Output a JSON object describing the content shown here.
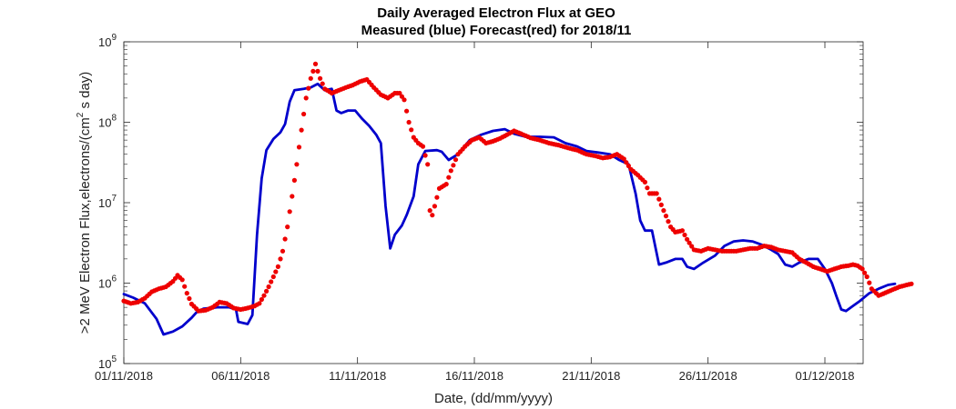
{
  "chart_data": {
    "type": "line",
    "title": "Daily Averaged Electron Flux at GEO",
    "subtitle": "Measured (blue) Forecast(red) for 2018/11",
    "xlabel": "Date, (dd/mm/yyyy)",
    "ylabel": ">2 MeV Electron Flux,electrons/(cm² s day)",
    "ylabel_parts": [
      ">2 MeV Electron Flux,electrons/(cm",
      "2",
      " s day)"
    ],
    "yscale": "log",
    "ylim": [
      100000,
      1000000000
    ],
    "xlim": [
      0,
      31
    ],
    "x_unit": "days since 01/11/2018",
    "x_tick_values": [
      0,
      5,
      10,
      15,
      20,
      25,
      30
    ],
    "x_tick_labels": [
      "01/11/2018",
      "06/11/2018",
      "11/11/2018",
      "16/11/2018",
      "21/11/2018",
      "26/11/2018",
      "01/12/2018"
    ],
    "y_tick_values": [
      100000,
      1000000,
      10000000,
      100000000,
      1000000000
    ],
    "y_tick_labels": [
      {
        "base": "10",
        "exp": "5"
      },
      {
        "base": "10",
        "exp": "6"
      },
      {
        "base": "10",
        "exp": "7"
      },
      {
        "base": "10",
        "exp": "8"
      },
      {
        "base": "10",
        "exp": "9"
      }
    ],
    "grid": false,
    "series": [
      {
        "name": "Measured",
        "color": "#0000cc",
        "style": "line",
        "points": [
          [
            0.0,
            730000
          ],
          [
            0.4,
            660000
          ],
          [
            0.9,
            560000
          ],
          [
            1.4,
            360000
          ],
          [
            1.7,
            230000
          ],
          [
            2.1,
            250000
          ],
          [
            2.5,
            290000
          ],
          [
            2.9,
            370000
          ],
          [
            3.1,
            430000
          ],
          [
            3.4,
            480000
          ],
          [
            4.0,
            500000
          ],
          [
            4.5,
            500000
          ],
          [
            4.8,
            470000
          ],
          [
            4.9,
            330000
          ],
          [
            5.3,
            310000
          ],
          [
            5.5,
            400000
          ],
          [
            5.7,
            4000000
          ],
          [
            5.9,
            20000000
          ],
          [
            6.1,
            45000000
          ],
          [
            6.4,
            62000000
          ],
          [
            6.7,
            75000000
          ],
          [
            6.9,
            95000000
          ],
          [
            7.1,
            180000000
          ],
          [
            7.3,
            250000000
          ],
          [
            7.7,
            260000000
          ],
          [
            8.0,
            270000000
          ],
          [
            8.3,
            300000000
          ],
          [
            8.6,
            250000000
          ],
          [
            8.9,
            260000000
          ],
          [
            9.1,
            140000000
          ],
          [
            9.3,
            130000000
          ],
          [
            9.6,
            140000000
          ],
          [
            9.9,
            140000000
          ],
          [
            10.2,
            110000000
          ],
          [
            10.5,
            90000000
          ],
          [
            10.8,
            70000000
          ],
          [
            11.0,
            55000000
          ],
          [
            11.2,
            9000000
          ],
          [
            11.4,
            2700000
          ],
          [
            11.6,
            4000000
          ],
          [
            11.9,
            5200000
          ],
          [
            12.1,
            7000000
          ],
          [
            12.4,
            12000000
          ],
          [
            12.6,
            30000000
          ],
          [
            12.9,
            44000000
          ],
          [
            13.4,
            45000000
          ],
          [
            13.6,
            43000000
          ],
          [
            13.9,
            34000000
          ],
          [
            14.3,
            40000000
          ],
          [
            14.8,
            60000000
          ],
          [
            15.3,
            70000000
          ],
          [
            15.8,
            78000000
          ],
          [
            16.3,
            82000000
          ],
          [
            16.7,
            72000000
          ],
          [
            17.2,
            66000000
          ],
          [
            17.8,
            66000000
          ],
          [
            18.4,
            65000000
          ],
          [
            18.9,
            55000000
          ],
          [
            19.4,
            50000000
          ],
          [
            19.8,
            44000000
          ],
          [
            20.3,
            42000000
          ],
          [
            20.8,
            40000000
          ],
          [
            21.2,
            34000000
          ],
          [
            21.6,
            30000000
          ],
          [
            21.9,
            13000000
          ],
          [
            22.1,
            6000000
          ],
          [
            22.3,
            4500000
          ],
          [
            22.6,
            4500000
          ],
          [
            22.9,
            1700000
          ],
          [
            23.2,
            1800000
          ],
          [
            23.6,
            2000000
          ],
          [
            23.9,
            2000000
          ],
          [
            24.1,
            1600000
          ],
          [
            24.4,
            1500000
          ],
          [
            24.8,
            1800000
          ],
          [
            25.3,
            2200000
          ],
          [
            25.7,
            2900000
          ],
          [
            26.1,
            3300000
          ],
          [
            26.5,
            3400000
          ],
          [
            26.9,
            3300000
          ],
          [
            27.3,
            3000000
          ],
          [
            27.7,
            2600000
          ],
          [
            28.0,
            2300000
          ],
          [
            28.3,
            1700000
          ],
          [
            28.6,
            1600000
          ],
          [
            28.9,
            1800000
          ],
          [
            29.3,
            2000000
          ],
          [
            29.7,
            2000000
          ],
          [
            30.0,
            1500000
          ],
          [
            30.3,
            1000000
          ],
          [
            30.5,
            680000
          ],
          [
            30.7,
            470000
          ],
          [
            30.9,
            450000
          ],
          [
            31.2,
            520000
          ],
          [
            31.5,
            600000
          ],
          [
            31.9,
            750000
          ],
          [
            32.3,
            850000
          ],
          [
            32.7,
            950000
          ],
          [
            33.0,
            980000
          ]
        ]
      },
      {
        "name": "Forecast",
        "color": "#ee0000",
        "style": "dots",
        "points": [
          [
            0.0,
            600000
          ],
          [
            0.3,
            560000
          ],
          [
            0.6,
            580000
          ],
          [
            0.9,
            650000
          ],
          [
            1.2,
            780000
          ],
          [
            1.5,
            850000
          ],
          [
            1.8,
            900000
          ],
          [
            2.1,
            1050000
          ],
          [
            2.3,
            1250000
          ],
          [
            2.5,
            1100000
          ],
          [
            2.7,
            750000
          ],
          [
            2.9,
            550000
          ],
          [
            3.2,
            450000
          ],
          [
            3.5,
            460000
          ],
          [
            3.8,
            500000
          ],
          [
            4.1,
            580000
          ],
          [
            4.4,
            560000
          ],
          [
            4.7,
            490000
          ],
          [
            5.0,
            470000
          ],
          [
            5.3,
            490000
          ],
          [
            5.6,
            520000
          ],
          [
            5.8,
            560000
          ],
          [
            6.0,
            700000
          ],
          [
            6.2,
            900000
          ],
          [
            6.4,
            1200000
          ],
          [
            6.6,
            1600000
          ],
          [
            6.8,
            2500000
          ],
          [
            7.0,
            5000000
          ],
          [
            7.2,
            12000000
          ],
          [
            7.4,
            30000000
          ],
          [
            7.6,
            80000000
          ],
          [
            7.8,
            200000000
          ],
          [
            8.0,
            350000000
          ],
          [
            8.2,
            530000000
          ],
          [
            8.4,
            350000000
          ],
          [
            8.6,
            260000000
          ],
          [
            8.9,
            230000000
          ],
          [
            9.2,
            250000000
          ],
          [
            9.5,
            270000000
          ],
          [
            9.8,
            290000000
          ],
          [
            10.1,
            320000000
          ],
          [
            10.4,
            340000000
          ],
          [
            10.7,
            270000000
          ],
          [
            11.0,
            220000000
          ],
          [
            11.3,
            200000000
          ],
          [
            11.6,
            230000000
          ],
          [
            11.8,
            230000000
          ],
          [
            12.0,
            190000000
          ],
          [
            12.2,
            100000000
          ],
          [
            12.4,
            65000000
          ],
          [
            12.6,
            55000000
          ],
          [
            12.8,
            50000000
          ],
          [
            13.0,
            30000000
          ],
          [
            13.1,
            8000000
          ],
          [
            13.2,
            7000000
          ],
          [
            13.5,
            15000000
          ],
          [
            13.8,
            17000000
          ],
          [
            14.0,
            25000000
          ],
          [
            14.3,
            40000000
          ],
          [
            14.6,
            50000000
          ],
          [
            14.9,
            60000000
          ],
          [
            15.2,
            65000000
          ],
          [
            15.5,
            55000000
          ],
          [
            15.8,
            58000000
          ],
          [
            16.1,
            63000000
          ],
          [
            16.4,
            70000000
          ],
          [
            16.7,
            78000000
          ],
          [
            17.0,
            72000000
          ],
          [
            17.4,
            64000000
          ],
          [
            17.8,
            60000000
          ],
          [
            18.2,
            55000000
          ],
          [
            18.6,
            52000000
          ],
          [
            19.0,
            48000000
          ],
          [
            19.4,
            45000000
          ],
          [
            19.8,
            40000000
          ],
          [
            20.2,
            38000000
          ],
          [
            20.5,
            36000000
          ],
          [
            20.8,
            37000000
          ],
          [
            21.1,
            40000000
          ],
          [
            21.4,
            35000000
          ],
          [
            21.7,
            26000000
          ],
          [
            22.0,
            22000000
          ],
          [
            22.3,
            18000000
          ],
          [
            22.5,
            13000000
          ],
          [
            22.8,
            13000000
          ],
          [
            23.1,
            8000000
          ],
          [
            23.4,
            5000000
          ],
          [
            23.6,
            4300000
          ],
          [
            23.9,
            4500000
          ],
          [
            24.1,
            3500000
          ],
          [
            24.4,
            2600000
          ],
          [
            24.7,
            2500000
          ],
          [
            25.0,
            2700000
          ],
          [
            25.3,
            2600000
          ],
          [
            25.6,
            2500000
          ],
          [
            25.9,
            2500000
          ],
          [
            26.2,
            2500000
          ],
          [
            26.5,
            2600000
          ],
          [
            26.8,
            2700000
          ],
          [
            27.1,
            2700000
          ],
          [
            27.4,
            2900000
          ],
          [
            27.7,
            2800000
          ],
          [
            28.0,
            2600000
          ],
          [
            28.3,
            2500000
          ],
          [
            28.6,
            2400000
          ],
          [
            28.9,
            2000000
          ],
          [
            29.2,
            1800000
          ],
          [
            29.5,
            1600000
          ],
          [
            29.8,
            1500000
          ],
          [
            30.1,
            1400000
          ],
          [
            30.4,
            1500000
          ],
          [
            30.7,
            1600000
          ],
          [
            31.0,
            1650000
          ],
          [
            31.2,
            1700000
          ],
          [
            31.4,
            1650000
          ],
          [
            31.6,
            1500000
          ],
          [
            31.8,
            1200000
          ],
          [
            32.0,
            850000
          ],
          [
            32.3,
            700000
          ],
          [
            32.6,
            760000
          ],
          [
            32.9,
            830000
          ],
          [
            33.2,
            900000
          ],
          [
            33.5,
            950000
          ],
          [
            33.7,
            980000
          ]
        ]
      }
    ]
  }
}
